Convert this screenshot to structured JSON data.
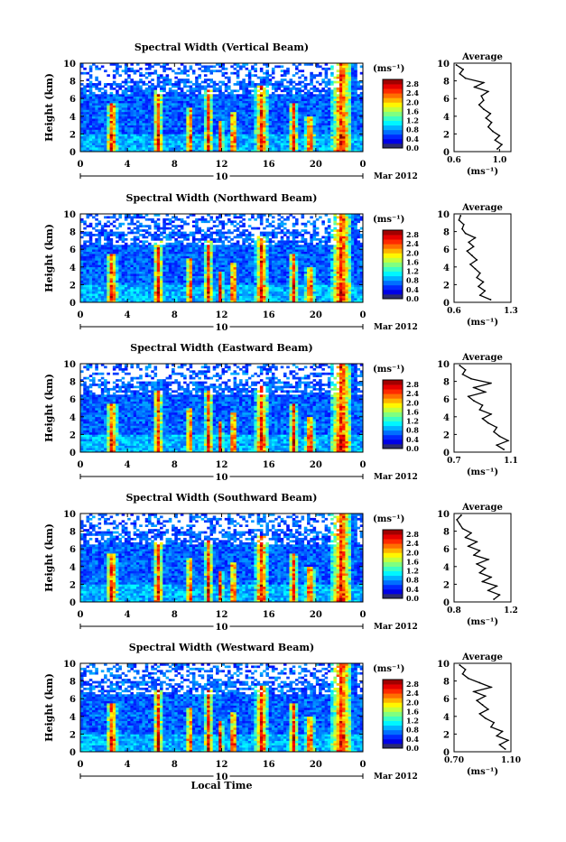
{
  "chart_data": [
    {
      "type": "heatmap",
      "title": "Spectral Width (Vertical Beam)",
      "ylabel": "Height (km)",
      "xticks": [
        "0",
        "4",
        "8",
        "12",
        "16",
        "20",
        "0"
      ],
      "yticks": [
        "0",
        "2",
        "4",
        "6",
        "8",
        "10"
      ],
      "xlim": [
        0,
        24
      ],
      "ylim": [
        0,
        10
      ],
      "date_label": "10",
      "month_label": "Mar 2012",
      "colorbar": {
        "unit": "(ms⁻¹)",
        "ticks": [
          "0.0",
          "0.4",
          "0.8",
          "1.2",
          "1.6",
          "2.0",
          "2.4",
          "2.8"
        ],
        "range": [
          0,
          3.0
        ]
      },
      "profile": {
        "title": "Average",
        "xlabel": "(ms⁻¹)",
        "xticks": [
          "0.6",
          "1.0"
        ],
        "xlim": [
          0.6,
          1.1
        ],
        "yticks": [
          "0",
          "2",
          "4",
          "6",
          "8",
          "10"
        ],
        "heights": [
          0.3,
          0.8,
          1.3,
          1.8,
          2.3,
          2.8,
          3.3,
          3.8,
          4.3,
          4.8,
          5.3,
          5.8,
          6.3,
          6.8,
          7.3,
          7.8,
          8.3,
          8.8,
          9.3,
          9.8
        ],
        "values": [
          0.98,
          1.02,
          0.96,
          1.0,
          0.94,
          0.9,
          0.93,
          0.88,
          0.92,
          0.86,
          0.82,
          0.86,
          0.84,
          0.9,
          0.78,
          0.86,
          0.7,
          0.65,
          0.68,
          0.62
        ]
      }
    },
    {
      "type": "heatmap",
      "title": "Spectral Width (Northward Beam)",
      "ylabel": "Height (km)",
      "xticks": [
        "0",
        "4",
        "8",
        "12",
        "16",
        "20",
        "0"
      ],
      "yticks": [
        "0",
        "2",
        "4",
        "6",
        "8",
        "10"
      ],
      "xlim": [
        0,
        24
      ],
      "ylim": [
        0,
        10
      ],
      "date_label": "10",
      "month_label": "Mar 2012",
      "colorbar": {
        "unit": "(ms⁻¹)",
        "ticks": [
          "0.0",
          "0.4",
          "0.8",
          "1.2",
          "1.6",
          "2.0",
          "2.4",
          "2.8"
        ],
        "range": [
          0,
          3.0
        ]
      },
      "profile": {
        "title": "Average",
        "xlabel": "(ms⁻¹)",
        "xticks": [
          "0.6",
          "1.3"
        ],
        "xlim": [
          0.6,
          1.3
        ],
        "yticks": [
          "0",
          "2",
          "4",
          "6",
          "8",
          "10"
        ],
        "heights": [
          0.3,
          0.8,
          1.3,
          1.8,
          2.3,
          2.8,
          3.3,
          3.8,
          4.3,
          4.8,
          5.3,
          5.8,
          6.3,
          6.8,
          7.3,
          7.8,
          8.3,
          8.8,
          9.3,
          9.8
        ],
        "values": [
          1.05,
          0.92,
          0.98,
          0.9,
          0.96,
          0.88,
          0.92,
          0.86,
          0.8,
          0.88,
          0.82,
          0.76,
          0.84,
          0.78,
          0.86,
          0.74,
          0.7,
          0.72,
          0.66,
          0.68
        ]
      }
    },
    {
      "type": "heatmap",
      "title": "Spectral Width (Eastward Beam)",
      "ylabel": "Height (km)",
      "xticks": [
        "0",
        "4",
        "8",
        "12",
        "16",
        "20",
        "0"
      ],
      "yticks": [
        "0",
        "2",
        "4",
        "6",
        "8",
        "10"
      ],
      "xlim": [
        0,
        24
      ],
      "ylim": [
        0,
        10
      ],
      "date_label": "10",
      "month_label": "Mar 2012",
      "colorbar": {
        "unit": "(ms⁻¹)",
        "ticks": [
          "0.0",
          "0.4",
          "0.8",
          "1.2",
          "1.6",
          "2.0",
          "2.4",
          "2.8"
        ],
        "range": [
          0,
          3.0
        ]
      },
      "profile": {
        "title": "Average",
        "xlabel": "(ms⁻¹)",
        "xticks": [
          "0.7",
          "1.1"
        ],
        "xlim": [
          0.7,
          1.1
        ],
        "yticks": [
          "0",
          "2",
          "4",
          "6",
          "8",
          "10"
        ],
        "heights": [
          0.3,
          0.8,
          1.3,
          1.8,
          2.3,
          2.8,
          3.3,
          3.8,
          4.3,
          4.8,
          5.3,
          5.8,
          6.3,
          6.8,
          7.3,
          7.8,
          8.3,
          8.8,
          9.3,
          9.8
        ],
        "values": [
          1.05,
          1.0,
          1.08,
          1.02,
          0.98,
          1.0,
          0.94,
          0.9,
          0.96,
          0.88,
          0.9,
          0.84,
          0.8,
          0.92,
          0.84,
          0.96,
          0.82,
          0.76,
          0.78,
          0.74
        ]
      }
    },
    {
      "type": "heatmap",
      "title": "Spectral Width (Southward Beam)",
      "ylabel": "Height (km)",
      "xticks": [
        "0",
        "4",
        "8",
        "12",
        "16",
        "20",
        "0"
      ],
      "yticks": [
        "0",
        "2",
        "4",
        "6",
        "8",
        "10"
      ],
      "xlim": [
        0,
        24
      ],
      "ylim": [
        0,
        10
      ],
      "date_label": "10",
      "month_label": "Mar 2012",
      "colorbar": {
        "unit": "(ms⁻¹)",
        "ticks": [
          "0.0",
          "0.4",
          "0.8",
          "1.2",
          "1.6",
          "2.0",
          "2.4",
          "2.8"
        ],
        "range": [
          0,
          3.0
        ]
      },
      "profile": {
        "title": "Average",
        "xlabel": "(ms⁻¹)",
        "xticks": [
          "0.8",
          "1.2"
        ],
        "xlim": [
          0.8,
          1.2
        ],
        "yticks": [
          "0",
          "2",
          "4",
          "6",
          "8",
          "10"
        ],
        "heights": [
          0.3,
          0.8,
          1.3,
          1.8,
          2.3,
          2.8,
          3.3,
          3.8,
          4.3,
          4.8,
          5.3,
          5.8,
          6.3,
          6.8,
          7.3,
          7.8,
          8.3,
          8.8,
          9.3,
          9.8
        ],
        "values": [
          1.08,
          1.12,
          1.04,
          1.1,
          1.0,
          1.06,
          0.98,
          1.02,
          0.96,
          1.04,
          0.94,
          0.98,
          0.9,
          0.96,
          0.88,
          0.92,
          0.86,
          0.84,
          0.82,
          0.85
        ]
      }
    },
    {
      "type": "heatmap",
      "title": "Spectral Width (Westward Beam)",
      "ylabel": "Height (km)",
      "xlabel": "Local Time",
      "xticks": [
        "0",
        "4",
        "8",
        "12",
        "16",
        "20",
        "0"
      ],
      "yticks": [
        "0",
        "2",
        "4",
        "6",
        "8",
        "10"
      ],
      "xlim": [
        0,
        24
      ],
      "ylim": [
        0,
        10
      ],
      "date_label": "10",
      "month_label": "Mar 2012",
      "colorbar": {
        "unit": "(ms⁻¹)",
        "ticks": [
          "0.0",
          "0.4",
          "0.8",
          "1.2",
          "1.6",
          "2.0",
          "2.4",
          "2.8"
        ],
        "range": [
          0,
          3.0
        ]
      },
      "profile": {
        "title": "Average",
        "xlabel": "(ms⁻¹)",
        "xticks": [
          "0.70",
          "1.10"
        ],
        "xlim": [
          0.7,
          1.1
        ],
        "yticks": [
          "0",
          "2",
          "4",
          "6",
          "8",
          "10"
        ],
        "heights": [
          0.3,
          0.8,
          1.3,
          1.8,
          2.3,
          2.8,
          3.3,
          3.8,
          4.3,
          4.8,
          5.3,
          5.8,
          6.3,
          6.8,
          7.3,
          7.8,
          8.3,
          8.8,
          9.3,
          9.8
        ],
        "values": [
          1.06,
          1.02,
          1.08,
          1.0,
          1.04,
          0.96,
          0.98,
          0.92,
          0.88,
          0.94,
          0.9,
          0.86,
          0.92,
          0.84,
          0.96,
          0.88,
          0.8,
          0.76,
          0.78,
          0.74
        ]
      }
    }
  ]
}
